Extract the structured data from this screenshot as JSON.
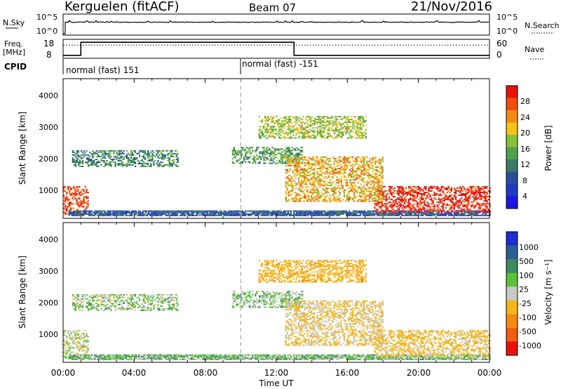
{
  "header": {
    "radar": "Kerguelen (fitACF)",
    "beam": "Beam 07",
    "date": "21/Nov/2016"
  },
  "nsky": {
    "label": "N.Sky",
    "ticks": [
      "10^5",
      "10^0"
    ],
    "right_label": "N.Search",
    "right_ticks": [
      "10^5",
      "10^0"
    ]
  },
  "freq": {
    "label_line1": "Freq.",
    "label_line2": "[MHz]",
    "ticks": [
      "18",
      "8"
    ],
    "right_label": "Nave",
    "right_ticks": [
      "60",
      "0"
    ]
  },
  "cpid": {
    "label": "CPID",
    "segments": [
      {
        "start_hour": 0,
        "label": "normal (fast) 151"
      },
      {
        "start_hour": 10,
        "label": "normal (fast) -151"
      }
    ]
  },
  "power_panel": {
    "ylabel": "Slant Range [km]",
    "yticks": [
      "4000",
      "3000",
      "2000",
      "1000"
    ],
    "colorbar_label": "Power [dB]",
    "colorbar_ticks": [
      "28",
      "24",
      "20",
      "16",
      "12",
      "8",
      "4"
    ],
    "colorbar_colors": [
      "#e8100c",
      "#f14d0e",
      "#f68b14",
      "#f6c414",
      "#86c33a",
      "#4ea34a",
      "#3a7c64",
      "#2a4f9a",
      "#1f3cc6",
      "#1b16e6"
    ]
  },
  "velocity_panel": {
    "ylabel": "Slant Range [km]",
    "yticks": [
      "4000",
      "3000",
      "2000",
      "1000"
    ],
    "colorbar_label": "Velocity [m s⁻¹]",
    "colorbar_ticks": [
      "1000",
      "500",
      "100",
      "25",
      "-25",
      "-100",
      "-500",
      "-1000"
    ],
    "colorbar_colors": [
      "#1b2ed0",
      "#2a5e96",
      "#3b8a63",
      "#5cc13a",
      "#c8c8c4",
      "#f4b61a",
      "#f68b12",
      "#f45c10",
      "#e8130c"
    ]
  },
  "xaxis": {
    "label": "Time UT",
    "ticks": [
      "00:00",
      "04:00",
      "08:00",
      "12:00",
      "16:00",
      "20:00",
      "00:00"
    ]
  },
  "chart_data": {
    "type": "heatmap",
    "title": "Kerguelen (fitACF)  Beam 07  21/Nov/2016",
    "xlabel": "Time UT",
    "ylabel": "Slant Range [km]",
    "xlim": [
      0,
      24
    ],
    "ylim": [
      180,
      4600
    ],
    "marker_hour": 10,
    "freq_mhz": [
      {
        "hour": 0,
        "value": 8
      },
      {
        "hour": 1,
        "value": 17
      },
      {
        "hour": 13,
        "value": 8
      }
    ],
    "freq_dotted_mhz": 15,
    "nsky": 5,
    "power_scale_db": [
      0,
      32
    ],
    "velocity_scale_ms": [
      -1000,
      1000
    ],
    "echo_regions": [
      {
        "name": "near-range strong echo",
        "t": [
          0.0,
          1.4
        ],
        "r": [
          300,
          1200
        ],
        "power_db": 28,
        "velocity_ms": -10
      },
      {
        "name": "morning band",
        "t": [
          0.5,
          6.5
        ],
        "r": [
          1800,
          2300
        ],
        "power_db": 12,
        "velocity_ms": 0
      },
      {
        "name": "E-region layer",
        "t": [
          0.3,
          24.0
        ],
        "r": [
          250,
          420
        ],
        "power_db": 8,
        "velocity_ms": 10
      },
      {
        "name": "afternoon strong echo",
        "t": [
          17.5,
          24.0
        ],
        "r": [
          350,
          1200
        ],
        "power_db": 30,
        "velocity_ms": -40
      },
      {
        "name": "midday high-range patch",
        "t": [
          9.5,
          13.5
        ],
        "r": [
          1900,
          2400
        ],
        "power_db": 14,
        "velocity_ms": 5
      },
      {
        "name": "post-noon descending echo",
        "t": [
          12.5,
          18.0
        ],
        "r": [
          700,
          2100
        ],
        "power_db": 22,
        "velocity_ms": -30
      },
      {
        "name": "far-range sporadic",
        "t": [
          11.0,
          17.0
        ],
        "r": [
          2700,
          3400
        ],
        "power_db": 18,
        "velocity_ms": -80
      }
    ]
  }
}
